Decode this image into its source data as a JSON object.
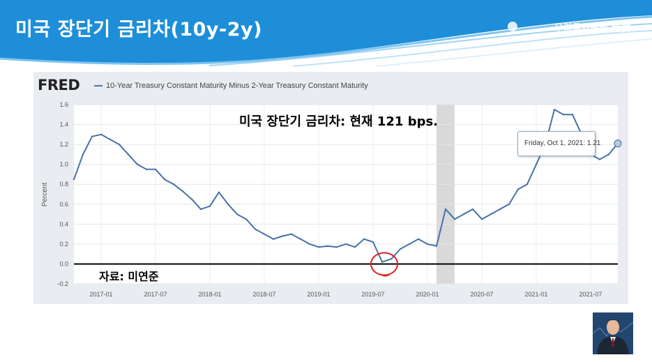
{
  "header": {
    "title": "미국 장단기 금리차(10y-2y)",
    "logo_text": "우리투자증권 大韓"
  },
  "colors": {
    "header_blue": "#1e8ed8",
    "series_line": "#4572a7",
    "recession_shade": "#d9d9d9",
    "circle_annotation": "#e02020"
  },
  "fred": {
    "logo": "FRED",
    "series_title": "10-Year Treasury Constant Maturity Minus 2-Year Treasury Constant Maturity"
  },
  "annotations": {
    "main": "미국 장단기 금리차: 현재 121 bps.",
    "source": "자료: 미연준"
  },
  "tooltip": {
    "text": "Friday, Oct 1, 2021: 1.21"
  },
  "chart_data": {
    "type": "line",
    "ylabel": "Percent",
    "ylim": [
      -0.2,
      1.6
    ],
    "yticks": [
      "1.6",
      "1.4",
      "1.2",
      "1.0",
      "0.8",
      "0.6",
      "0.4",
      "0.2",
      "0.0",
      "-0.2"
    ],
    "xticks": [
      "2017-01",
      "2017-07",
      "2018-01",
      "2018-07",
      "2019-01",
      "2019-07",
      "2020-01",
      "2020-07",
      "2021-01",
      "2021-07"
    ],
    "recession": {
      "start": "2020-02",
      "end": "2020-04"
    },
    "grid": true,
    "series": [
      {
        "x": [
          "2016-10",
          "2016-11",
          "2016-12",
          "2017-01",
          "2017-02",
          "2017-03",
          "2017-04",
          "2017-05",
          "2017-06",
          "2017-07",
          "2017-08",
          "2017-09",
          "2017-10",
          "2017-11",
          "2017-12",
          "2018-01",
          "2018-02",
          "2018-03",
          "2018-04",
          "2018-05",
          "2018-06",
          "2018-07",
          "2018-08",
          "2018-09",
          "2018-10",
          "2018-11",
          "2018-12",
          "2019-01",
          "2019-02",
          "2019-03",
          "2019-04",
          "2019-05",
          "2019-06",
          "2019-07",
          "2019-08",
          "2019-09",
          "2019-10",
          "2019-11",
          "2019-12",
          "2020-01",
          "2020-02",
          "2020-03",
          "2020-04",
          "2020-05",
          "2020-06",
          "2020-07",
          "2020-08",
          "2020-09",
          "2020-10",
          "2020-11",
          "2020-12",
          "2021-01",
          "2021-02",
          "2021-03",
          "2021-04",
          "2021-05",
          "2021-06",
          "2021-07",
          "2021-08",
          "2021-09",
          "2021-10"
        ],
        "y": [
          0.85,
          1.1,
          1.28,
          1.3,
          1.25,
          1.2,
          1.1,
          1.0,
          0.95,
          0.95,
          0.85,
          0.8,
          0.73,
          0.65,
          0.55,
          0.58,
          0.72,
          0.6,
          0.5,
          0.45,
          0.35,
          0.3,
          0.25,
          0.28,
          0.3,
          0.25,
          0.2,
          0.17,
          0.18,
          0.17,
          0.2,
          0.17,
          0.25,
          0.22,
          0.02,
          0.05,
          0.15,
          0.2,
          0.25,
          0.2,
          0.18,
          0.55,
          0.45,
          0.5,
          0.55,
          0.45,
          0.5,
          0.55,
          0.6,
          0.75,
          0.8,
          1.0,
          1.2,
          1.55,
          1.5,
          1.5,
          1.3,
          1.1,
          1.05,
          1.1,
          1.21
        ]
      }
    ]
  }
}
